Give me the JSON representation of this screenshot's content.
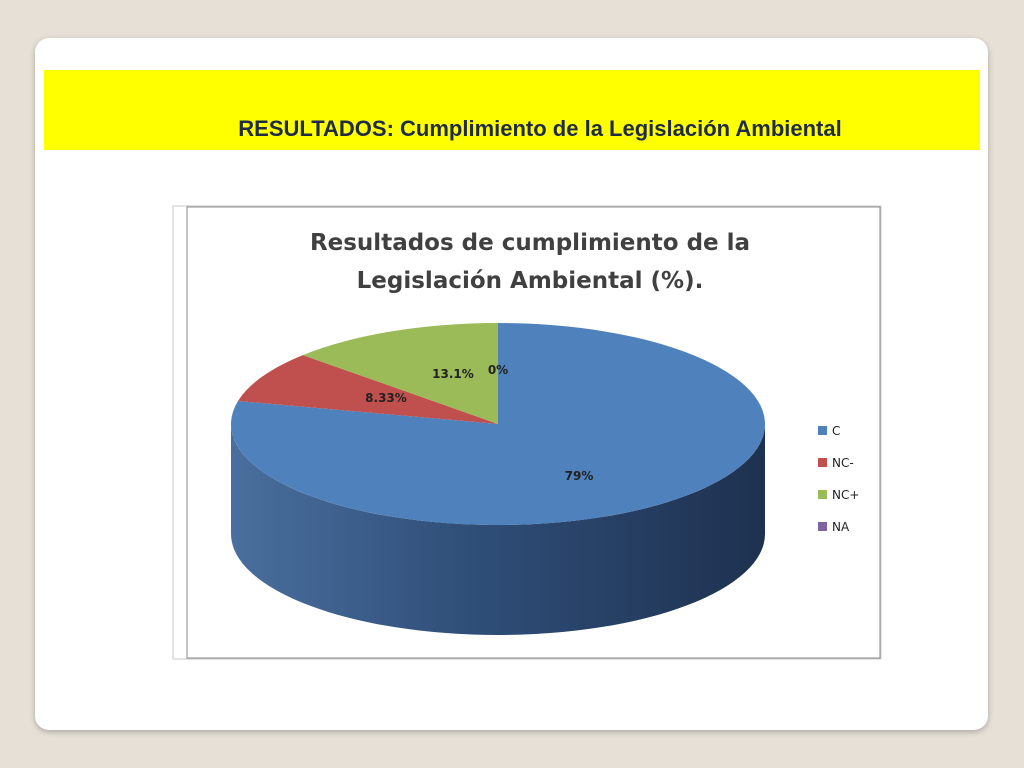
{
  "slide": {
    "title": "RESULTADOS: Cumplimiento de la Legislación Ambiental"
  },
  "colors": {
    "title_band": "#ffff00",
    "C": "#4f81bd",
    "NC-": "#c0504d",
    "NC+": "#9bbb59",
    "NA": "#8064a2"
  },
  "chart_data": {
    "type": "pie",
    "title_lines": [
      "Resultados de cumplimiento de la",
      "Legislación Ambiental (%)."
    ],
    "categories": [
      "C",
      "NC-",
      "NC+",
      "NA"
    ],
    "values": [
      79,
      8.33,
      13.1,
      0
    ],
    "labels": [
      "79%",
      "8.33%",
      "13.1%",
      "0%"
    ],
    "three_d": true,
    "legend_position": "right"
  }
}
